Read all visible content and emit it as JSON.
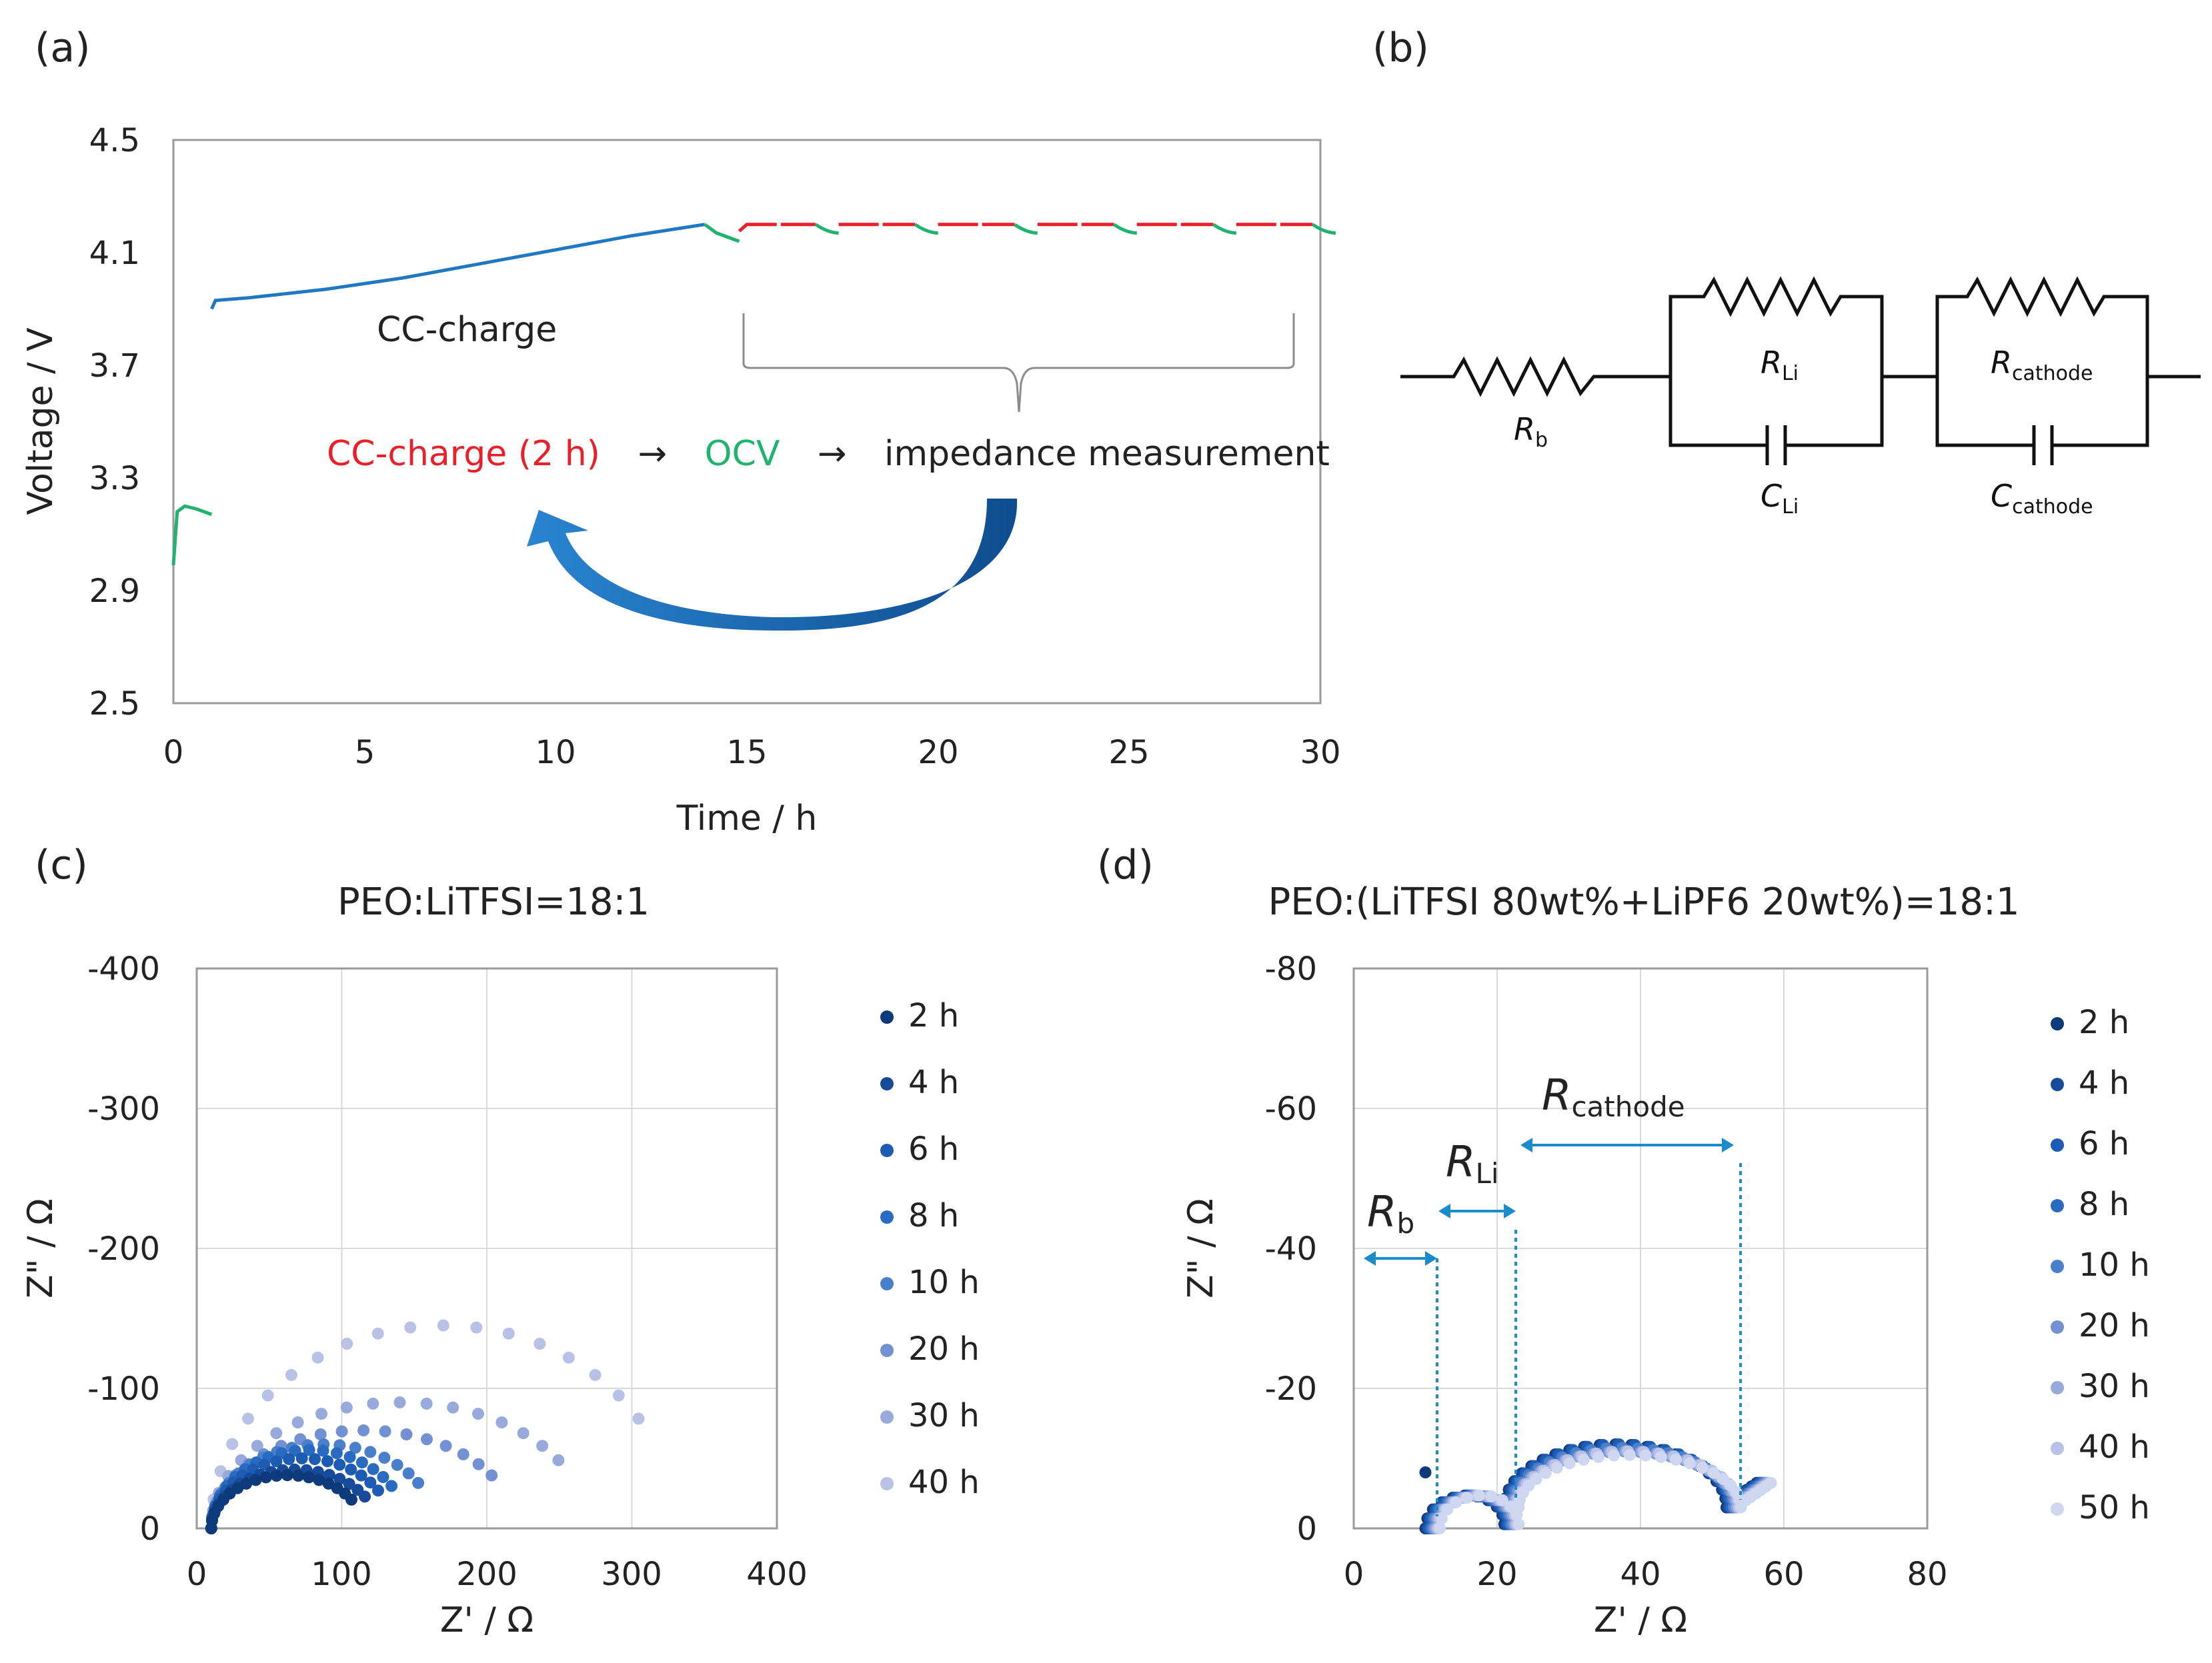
{
  "panels": {
    "a": "(a)",
    "b": "(b)",
    "c": "(c)",
    "d": "(d)"
  },
  "colors": {
    "charge_blue": "#1f78c1",
    "cc_red": "#e8202a",
    "ocv_green": "#1fb36e",
    "arrow_blue": "#1a5fa3",
    "annot_blue": "#1a8ccc",
    "series": [
      "#0d3a7a",
      "#174a99",
      "#1e5cb3",
      "#2a6bc2",
      "#4a7fcc",
      "#7290d2",
      "#98a9dc",
      "#b9c2e6",
      "#cfd6ef"
    ]
  },
  "chart_a": {
    "xlabel": "Time / h",
    "ylabel": "Voltage / V",
    "xlim": [
      0,
      30
    ],
    "ylim": [
      2.5,
      4.5
    ],
    "xticks": [
      "0",
      "5",
      "10",
      "15",
      "20",
      "25",
      "30"
    ],
    "yticks": [
      "2.5",
      "2.9",
      "3.3",
      "3.7",
      "4.1",
      "4.5"
    ],
    "cc_charge_label": "CC-charge",
    "cycle_text": {
      "step1": "CC-charge (2 h)",
      "arrow1": "→",
      "step2": "OCV",
      "arrow2": "→",
      "step3": "impedance measurement"
    }
  },
  "circuit_b": {
    "rb": "R",
    "rb_sub": "b",
    "rli": "R",
    "rli_sub": "Li",
    "cli": "C",
    "cli_sub": "Li",
    "rcat": "R",
    "rcat_sub": "cathode",
    "ccat": "C",
    "ccat_sub": "cathode"
  },
  "chart_c": {
    "title": "PEO:LiTFSI=18:1",
    "xlabel": "Z' / Ω",
    "ylabel": "Z\" / Ω",
    "xlim": [
      0,
      400
    ],
    "ylim": [
      0,
      -400
    ],
    "xticks": [
      "0",
      "100",
      "200",
      "300",
      "400"
    ],
    "yticks": [
      "0",
      "-100",
      "-200",
      "-300",
      "-400"
    ],
    "legend": [
      "2 h",
      "4 h",
      "6 h",
      "8 h",
      "10 h",
      "20 h",
      "30 h",
      "40 h"
    ]
  },
  "chart_d": {
    "title": "PEO:(LiTFSI 80wt%+LiPF6 20wt%)=18:1",
    "xlabel": "Z' / Ω",
    "ylabel": "Z\" / Ω",
    "xlim": [
      0,
      80
    ],
    "ylim": [
      0,
      -80
    ],
    "xticks": [
      "0",
      "20",
      "40",
      "60",
      "80"
    ],
    "yticks": [
      "0",
      "-20",
      "-40",
      "-60",
      "-80"
    ],
    "legend": [
      "2 h",
      "4 h",
      "6 h",
      "8 h",
      "10 h",
      "20 h",
      "30 h",
      "40 h",
      "50 h"
    ],
    "annot_rb": "R",
    "annot_rb_sub": "b",
    "annot_rli": "R",
    "annot_rli_sub": "Li",
    "annot_rcat": "R",
    "annot_rcat_sub": "cathode"
  },
  "chart_data": [
    {
      "type": "line",
      "title": "",
      "xlabel": "Time / h",
      "ylabel": "Voltage / V",
      "xlim": [
        0,
        30
      ],
      "ylim": [
        2.5,
        4.5
      ],
      "series": [
        {
          "name": "OCV (initial)",
          "x": [
            0,
            0.1,
            0.3,
            0.6,
            1.0
          ],
          "y": [
            2.99,
            3.18,
            3.2,
            3.19,
            3.17
          ]
        },
        {
          "name": "CC-charge",
          "x": [
            1.0,
            1.1,
            2,
            4,
            6,
            8,
            10,
            12,
            13.9
          ],
          "y": [
            3.9,
            3.93,
            3.94,
            3.97,
            4.01,
            4.06,
            4.11,
            4.16,
            4.2
          ]
        },
        {
          "name": "OCV after CC",
          "x": [
            13.9,
            14.2,
            14.8
          ],
          "y": [
            4.2,
            4.17,
            4.14
          ]
        },
        {
          "name": "CC-charge (2 h) cycles",
          "x": [
            14.8,
            15.0,
            30
          ],
          "y": [
            4.18,
            4.2,
            4.2
          ]
        }
      ]
    },
    {
      "type": "scatter",
      "title": "PEO:LiTFSI=18:1",
      "xlabel": "Z' / Ω",
      "ylabel": "Z\" / Ω",
      "xlim": [
        0,
        400
      ],
      "ylim": [
        0,
        -400
      ],
      "series": [
        {
          "name": "2 h",
          "R0": 10,
          "R": 105,
          "peak": 38
        },
        {
          "name": "4 h",
          "R0": 10,
          "R": 115,
          "peak": 42
        },
        {
          "name": "6 h",
          "R0": 10,
          "R": 125,
          "peak": 50
        },
        {
          "name": "8 h",
          "R0": 10,
          "R": 135,
          "peak": 56
        },
        {
          "name": "10 h",
          "R0": 10,
          "R": 155,
          "peak": 60
        },
        {
          "name": "20 h",
          "R0": 10,
          "R": 210,
          "peak": 70
        },
        {
          "name": "30 h",
          "R0": 10,
          "R": 260,
          "peak": 90
        },
        {
          "name": "40 h",
          "R0": 10,
          "R": 320,
          "peak": 145
        }
      ]
    },
    {
      "type": "scatter",
      "title": "PEO:(LiTFSI 80wt%+LiPF6 20wt%)=18:1",
      "xlabel": "Z' / Ω",
      "ylabel": "Z\" / Ω",
      "xlim": [
        0,
        80
      ],
      "ylim": [
        0,
        -80
      ],
      "series": [
        {
          "name": "2 h",
          "Rb": 11,
          "RLi": 11,
          "Rcat": 31,
          "peak": 12
        },
        {
          "name": "4 h",
          "Rb": 11,
          "RLi": 11,
          "Rcat": 31,
          "peak": 12
        },
        {
          "name": "6 h",
          "Rb": 11,
          "RLi": 11,
          "Rcat": 31,
          "peak": 12
        },
        {
          "name": "8 h",
          "Rb": 11,
          "RLi": 11,
          "Rcat": 31,
          "peak": 11.5
        },
        {
          "name": "10 h",
          "Rb": 11,
          "RLi": 11,
          "Rcat": 31,
          "peak": 11.5
        },
        {
          "name": "20 h",
          "Rb": 11,
          "RLi": 11,
          "Rcat": 31,
          "peak": 11
        },
        {
          "name": "30 h",
          "Rb": 11,
          "RLi": 11,
          "Rcat": 31,
          "peak": 11
        },
        {
          "name": "40 h",
          "Rb": 11,
          "RLi": 11,
          "Rcat": 31,
          "peak": 11
        },
        {
          "name": "50 h",
          "Rb": 11,
          "RLi": 11,
          "Rcat": 31,
          "peak": 10.5
        }
      ]
    }
  ]
}
